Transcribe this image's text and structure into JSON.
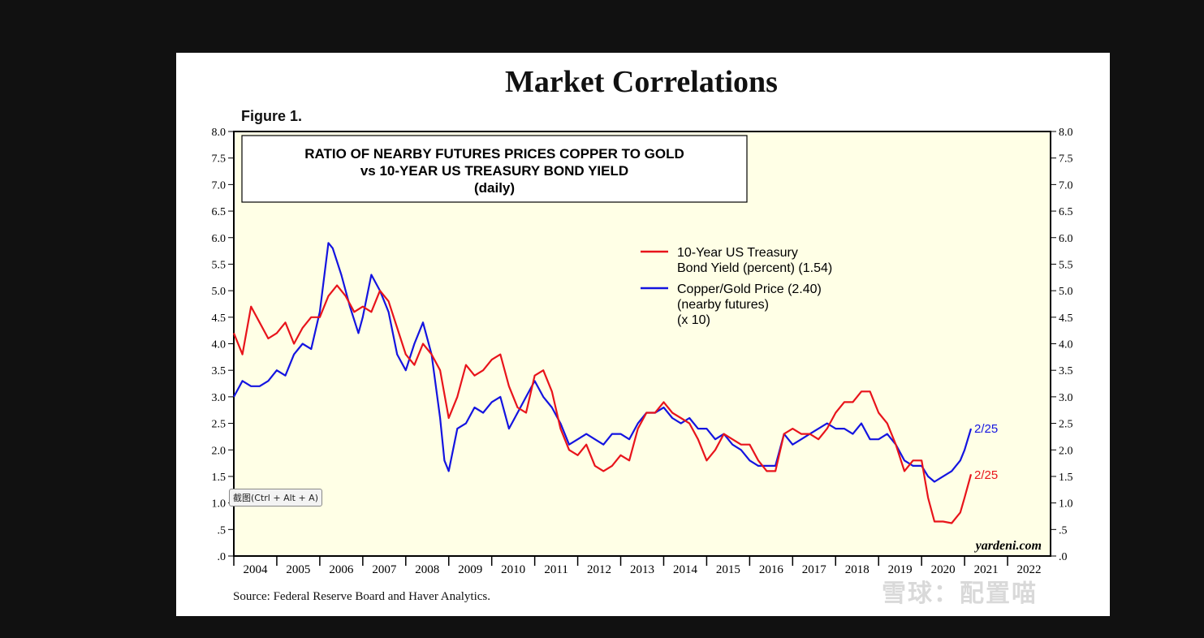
{
  "title": "Market Correlations",
  "figure_label": "Figure 1.",
  "source": "Source: Federal Reserve Board and Haver Analytics.",
  "tooltip": "截图(Ctrl + Alt + A)",
  "watermark": "雪球：配置喵",
  "chart_data": {
    "type": "line",
    "title": "RATIO OF NEARBY FUTURES PRICES COPPER TO GOLD",
    "subtitle_lines": [
      "vs 10-YEAR US TREASURY BOND YIELD",
      "(daily)"
    ],
    "brand": "yardeni.com",
    "ylim": [
      0,
      8
    ],
    "ytick_labels": [
      ".0",
      ".5",
      "1.0",
      "1.5",
      "2.0",
      "2.5",
      "3.0",
      "3.5",
      "4.0",
      "4.5",
      "5.0",
      "5.5",
      "6.0",
      "6.5",
      "7.0",
      "7.5",
      "8.0"
    ],
    "xlim": [
      2004,
      2023
    ],
    "x_year_labels": [
      "2004",
      "2005",
      "2006",
      "2007",
      "2008",
      "2009",
      "2010",
      "2011",
      "2012",
      "2013",
      "2014",
      "2015",
      "2016",
      "2017",
      "2018",
      "2019",
      "2020",
      "2021",
      "2022"
    ],
    "legend_position": "upper-right",
    "colors": {
      "yield": "#e8141b",
      "copper_gold": "#1414e0",
      "background": "#ffffe6"
    },
    "series": [
      {
        "name": "10-Year US Treasury",
        "legend_lines": [
          "10-Year US Treasury",
          "Bond Yield (percent) (1.54)"
        ],
        "end_label": "2/25",
        "color": "#e8141b",
        "x": [
          2004.0,
          2004.2,
          2004.4,
          2004.6,
          2004.8,
          2005.0,
          2005.2,
          2005.4,
          2005.6,
          2005.8,
          2006.0,
          2006.2,
          2006.4,
          2006.6,
          2006.8,
          2007.0,
          2007.2,
          2007.4,
          2007.6,
          2007.8,
          2008.0,
          2008.2,
          2008.4,
          2008.6,
          2008.8,
          2009.0,
          2009.2,
          2009.4,
          2009.6,
          2009.8,
          2010.0,
          2010.2,
          2010.4,
          2010.6,
          2010.8,
          2011.0,
          2011.2,
          2011.4,
          2011.6,
          2011.8,
          2012.0,
          2012.2,
          2012.4,
          2012.6,
          2012.8,
          2013.0,
          2013.2,
          2013.4,
          2013.6,
          2013.8,
          2014.0,
          2014.2,
          2014.4,
          2014.6,
          2014.8,
          2015.0,
          2015.2,
          2015.4,
          2015.6,
          2015.8,
          2016.0,
          2016.2,
          2016.4,
          2016.6,
          2016.8,
          2017.0,
          2017.2,
          2017.4,
          2017.6,
          2017.8,
          2018.0,
          2018.2,
          2018.4,
          2018.6,
          2018.8,
          2019.0,
          2019.2,
          2019.4,
          2019.6,
          2019.8,
          2020.0,
          2020.15,
          2020.3,
          2020.5,
          2020.7,
          2020.9,
          2021.0,
          2021.15
        ],
        "values": [
          4.2,
          3.8,
          4.7,
          4.4,
          4.1,
          4.2,
          4.4,
          4.0,
          4.3,
          4.5,
          4.5,
          4.9,
          5.1,
          4.9,
          4.6,
          4.7,
          4.6,
          5.0,
          4.8,
          4.3,
          3.8,
          3.6,
          4.0,
          3.8,
          3.5,
          2.6,
          3.0,
          3.6,
          3.4,
          3.5,
          3.7,
          3.8,
          3.2,
          2.8,
          2.7,
          3.4,
          3.5,
          3.1,
          2.4,
          2.0,
          1.9,
          2.1,
          1.7,
          1.6,
          1.7,
          1.9,
          1.8,
          2.4,
          2.7,
          2.7,
          2.9,
          2.7,
          2.6,
          2.5,
          2.2,
          1.8,
          2.0,
          2.3,
          2.2,
          2.1,
          2.1,
          1.8,
          1.6,
          1.6,
          2.3,
          2.4,
          2.3,
          2.3,
          2.2,
          2.4,
          2.7,
          2.9,
          2.9,
          3.1,
          3.1,
          2.7,
          2.5,
          2.1,
          1.6,
          1.8,
          1.8,
          1.1,
          0.65,
          0.65,
          0.62,
          0.82,
          1.1,
          1.54
        ]
      },
      {
        "name": "Copper/Gold Price",
        "legend_lines": [
          "Copper/Gold Price (2.40)",
          "(nearby futures)",
          "(x 10)"
        ],
        "end_label": "2/25",
        "color": "#1414e0",
        "x": [
          2004.0,
          2004.2,
          2004.4,
          2004.6,
          2004.8,
          2005.0,
          2005.2,
          2005.4,
          2005.6,
          2005.8,
          2006.0,
          2006.2,
          2006.3,
          2006.5,
          2006.7,
          2006.9,
          2007.0,
          2007.2,
          2007.4,
          2007.6,
          2007.8,
          2008.0,
          2008.2,
          2008.4,
          2008.6,
          2008.8,
          2008.9,
          2009.0,
          2009.2,
          2009.4,
          2009.6,
          2009.8,
          2010.0,
          2010.2,
          2010.4,
          2010.6,
          2010.8,
          2011.0,
          2011.2,
          2011.4,
          2011.6,
          2011.8,
          2012.0,
          2012.2,
          2012.4,
          2012.6,
          2012.8,
          2013.0,
          2013.2,
          2013.4,
          2013.6,
          2013.8,
          2014.0,
          2014.2,
          2014.4,
          2014.6,
          2014.8,
          2015.0,
          2015.2,
          2015.4,
          2015.6,
          2015.8,
          2016.0,
          2016.2,
          2016.4,
          2016.6,
          2016.8,
          2017.0,
          2017.2,
          2017.4,
          2017.6,
          2017.8,
          2018.0,
          2018.2,
          2018.4,
          2018.6,
          2018.8,
          2019.0,
          2019.2,
          2019.4,
          2019.6,
          2019.8,
          2020.0,
          2020.15,
          2020.3,
          2020.5,
          2020.7,
          2020.9,
          2021.0,
          2021.15
        ],
        "values": [
          3.0,
          3.3,
          3.2,
          3.2,
          3.3,
          3.5,
          3.4,
          3.8,
          4.0,
          3.9,
          4.6,
          5.9,
          5.8,
          5.3,
          4.7,
          4.2,
          4.5,
          5.3,
          5.0,
          4.6,
          3.8,
          3.5,
          4.0,
          4.4,
          3.8,
          2.6,
          1.8,
          1.6,
          2.4,
          2.5,
          2.8,
          2.7,
          2.9,
          3.0,
          2.4,
          2.7,
          3.0,
          3.3,
          3.0,
          2.8,
          2.5,
          2.1,
          2.2,
          2.3,
          2.2,
          2.1,
          2.3,
          2.3,
          2.2,
          2.5,
          2.7,
          2.7,
          2.8,
          2.6,
          2.5,
          2.6,
          2.4,
          2.4,
          2.2,
          2.3,
          2.1,
          2.0,
          1.8,
          1.7,
          1.7,
          1.7,
          2.3,
          2.1,
          2.2,
          2.3,
          2.4,
          2.5,
          2.4,
          2.4,
          2.3,
          2.5,
          2.2,
          2.2,
          2.3,
          2.1,
          1.8,
          1.7,
          1.7,
          1.5,
          1.4,
          1.5,
          1.6,
          1.8,
          2.0,
          2.4
        ]
      }
    ]
  }
}
